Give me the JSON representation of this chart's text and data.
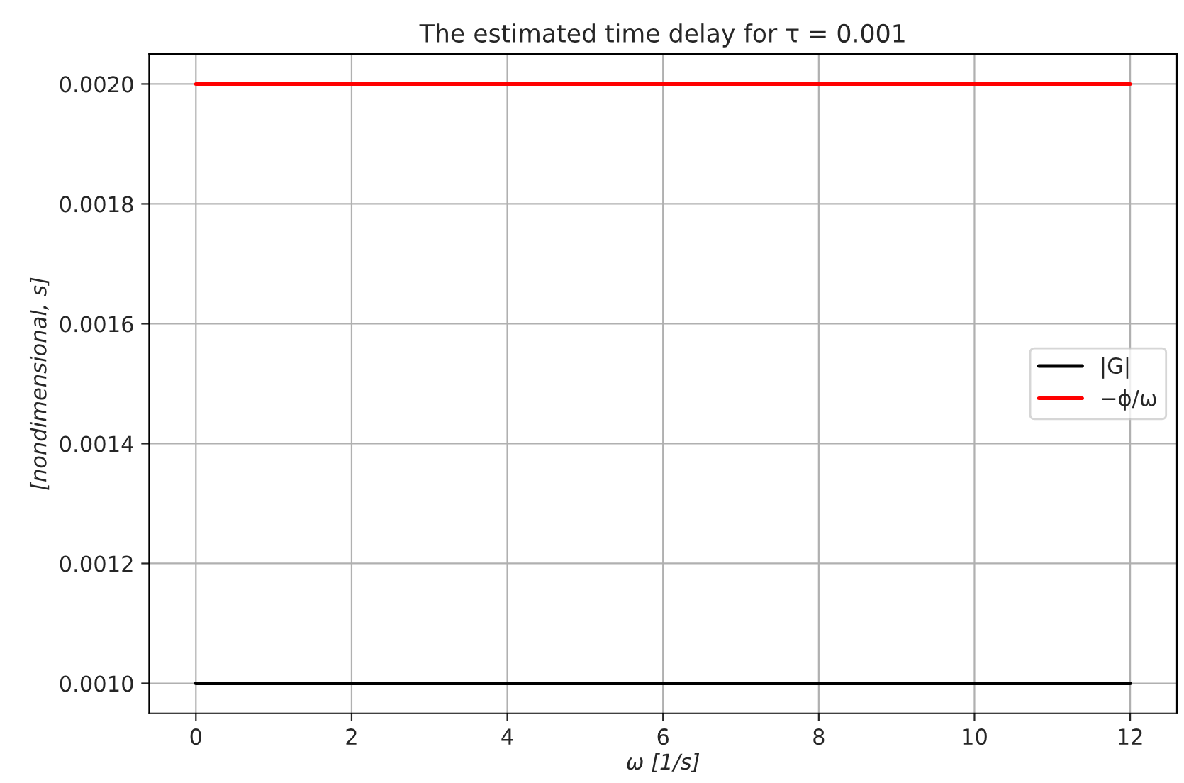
{
  "chart_data": {
    "type": "line",
    "title": "The estimated time delay for τ = 0.001",
    "xlabel": "ω [1/s]",
    "ylabel": "[nondimensional, s]",
    "x": [
      0,
      12
    ],
    "series": [
      {
        "name": "|G|",
        "color": "#000000",
        "values": [
          0.001,
          0.001
        ]
      },
      {
        "name": "−ϕ/ω",
        "color": "#ff0000",
        "values": [
          0.002,
          0.002
        ]
      }
    ],
    "xlim": [
      -0.6,
      12.6
    ],
    "xticks": [
      0,
      2,
      4,
      6,
      8,
      10,
      12
    ],
    "ylim": [
      0.00095,
      0.00205
    ],
    "yticks": [
      {
        "value": 0.001,
        "label": "0.0010"
      },
      {
        "value": 0.0012,
        "label": "0.0012"
      },
      {
        "value": 0.0014,
        "label": "0.0014"
      },
      {
        "value": 0.0016,
        "label": "0.0016"
      },
      {
        "value": 0.0018,
        "label": "0.0018"
      },
      {
        "value": 0.002,
        "label": "0.0020"
      }
    ],
    "grid": true,
    "legend": "center right",
    "line_style": "solid",
    "marker": "none"
  }
}
